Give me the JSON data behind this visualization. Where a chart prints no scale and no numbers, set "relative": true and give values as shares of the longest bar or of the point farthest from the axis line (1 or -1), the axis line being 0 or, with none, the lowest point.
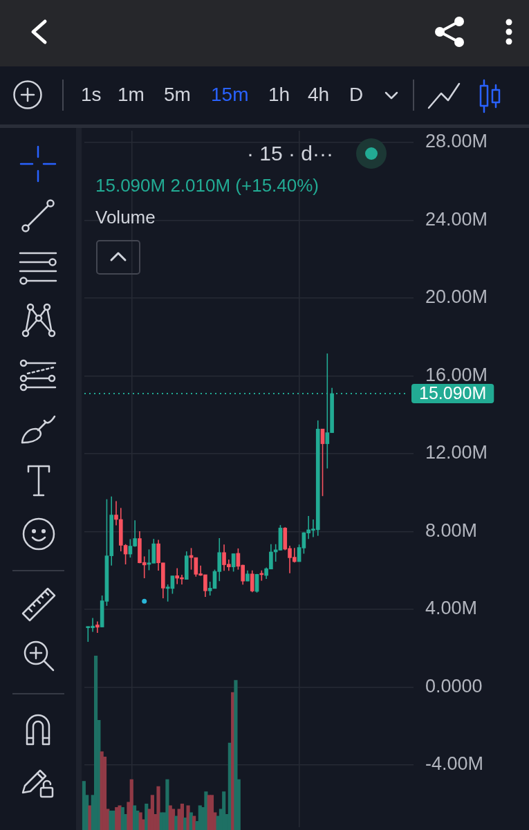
{
  "chart_data": [
    {
      "type": "candlestick",
      "title": "· 15 · d···",
      "subtitle": "15.090M 2.010M (+15.40%)",
      "categories": [
        null,
        null,
        null,
        null,
        null,
        null,
        null,
        null,
        null,
        null,
        null,
        null,
        null,
        null,
        null,
        null,
        null,
        null,
        null,
        null,
        null,
        null,
        null,
        null,
        null,
        null,
        null,
        null,
        null,
        null,
        null,
        null,
        null,
        null,
        null,
        null,
        null,
        null,
        null,
        null,
        null,
        null,
        null,
        null,
        null,
        null,
        null,
        null,
        null,
        null,
        null,
        null,
        null
      ],
      "series": [
        {
          "ohlc": [
            [
              3.05,
              3.1,
              2.33,
              3.1
            ],
            [
              3.05,
              3.55,
              2.84,
              3.14
            ],
            [
              3.2,
              3.38,
              2.79,
              3.08
            ],
            [
              3.09,
              4.71,
              3.08,
              4.44
            ],
            [
              4.41,
              9.66,
              4.18,
              6.75
            ],
            [
              6.75,
              9.8,
              6.25,
              8.85
            ],
            [
              8.85,
              9.56,
              8.32,
              8.62
            ],
            [
              8.62,
              9.21,
              6.98,
              7.29
            ],
            [
              7.29,
              7.35,
              6.31,
              6.84
            ],
            [
              6.84,
              7.61,
              6.66,
              7.25
            ],
            [
              7.25,
              8.58,
              7.22,
              7.64
            ],
            [
              7.64,
              8.02,
              6.37,
              6.39
            ],
            [
              6.41,
              6.72,
              5.6,
              6.28
            ],
            [
              6.31,
              7.08,
              6.01,
              6.39
            ],
            [
              6.37,
              7.62,
              6.37,
              7.37
            ],
            [
              7.37,
              7.57,
              5.99,
              6.39
            ],
            [
              6.39,
              6.39,
              4.57,
              5.09
            ],
            [
              5.07,
              5.28,
              4.4,
              5.15
            ],
            [
              5.07,
              5.72,
              4.8,
              5.72
            ],
            [
              5.73,
              6.11,
              5.3,
              5.6
            ],
            [
              5.62,
              5.78,
              5.28,
              5.56
            ],
            [
              5.54,
              6.98,
              5.54,
              6.75
            ],
            [
              6.77,
              7.15,
              6.04,
              6.66
            ],
            [
              6.66,
              6.66,
              5.68,
              5.8
            ],
            [
              5.83,
              6.25,
              5.72,
              5.75
            ],
            [
              5.78,
              5.78,
              4.64,
              4.95
            ],
            [
              4.95,
              5.42,
              4.71,
              5.09
            ],
            [
              5.07,
              6.04,
              5.07,
              5.95
            ],
            [
              5.94,
              7.66,
              5.45,
              6.92
            ],
            [
              6.92,
              7.33,
              5.98,
              6.29
            ],
            [
              6.32,
              6.56,
              5.98,
              6.18
            ],
            [
              6.18,
              6.86,
              5.94,
              6.86
            ],
            [
              6.88,
              7.13,
              6.04,
              6.21
            ],
            [
              6.27,
              6.29,
              5.27,
              5.45
            ],
            [
              5.45,
              6.0,
              5.45,
              5.82
            ],
            [
              5.82,
              6.0,
              4.88,
              4.94
            ],
            [
              4.92,
              5.82,
              4.86,
              5.8
            ],
            [
              5.82,
              6.0,
              5.47,
              5.78
            ],
            [
              5.74,
              6.15,
              5.56,
              6.09
            ],
            [
              6.07,
              7.35,
              6.07,
              6.95
            ],
            [
              6.95,
              7.35,
              6.45,
              7.06
            ],
            [
              7.04,
              8.33,
              7.04,
              8.18
            ],
            [
              8.18,
              8.22,
              7.04,
              7.09
            ],
            [
              7.13,
              7.27,
              5.86,
              6.65
            ],
            [
              6.68,
              7.15,
              6.41,
              6.45
            ],
            [
              6.45,
              7.33,
              6.45,
              7.18
            ],
            [
              7.15,
              7.96,
              6.86,
              7.94
            ],
            [
              7.92,
              8.8,
              7.62,
              8.09
            ],
            [
              8.06,
              8.62,
              7.71,
              8.11
            ],
            [
              8.09,
              13.71,
              7.78,
              13.27
            ],
            [
              13.27,
              13.27,
              9.82,
              12.51
            ],
            [
              12.51,
              17.15,
              11.24,
              13.08
            ],
            [
              13.08,
              15.38,
              13.08,
              15.09
            ]
          ],
          "colors": [
            "#22ab94",
            "#22ab94",
            "#f7525f",
            "#22ab94",
            "#22ab94",
            "#22ab94",
            "#f7525f",
            "#f7525f",
            "#f7525f",
            "#22ab94",
            "#22ab94",
            "#f7525f",
            "#f7525f",
            "#22ab94",
            "#22ab94",
            "#f7525f",
            "#f7525f",
            "#22ab94",
            "#22ab94",
            "#f7525f",
            "#f7525f",
            "#22ab94",
            "#f7525f",
            "#f7525f",
            "#f7525f",
            "#f7525f",
            "#22ab94",
            "#22ab94",
            "#22ab94",
            "#f7525f",
            "#f7525f",
            "#22ab94",
            "#f7525f",
            "#f7525f",
            "#22ab94",
            "#f7525f",
            "#22ab94",
            "#f7525f",
            "#22ab94",
            "#22ab94",
            "#22ab94",
            "#22ab94",
            "#f7525f",
            "#f7525f",
            "#f7525f",
            "#22ab94",
            "#22ab94",
            "#22ab94",
            "#22ab94",
            "#22ab94",
            "#f7525f",
            "#22ab94",
            "#22ab94"
          ]
        },
        {
          "type": "scatter",
          "color": "#29b6d8",
          "values": [
            null,
            null,
            null,
            null,
            null,
            null,
            null,
            null,
            null,
            null,
            null,
            null,
            4.42,
            null,
            null,
            null,
            null,
            null,
            null,
            null,
            null,
            null,
            null,
            null,
            null,
            null,
            null,
            null,
            null,
            null,
            null,
            null,
            null,
            null,
            null,
            null,
            null,
            null,
            null,
            null,
            null,
            null,
            null,
            null,
            null,
            null,
            null,
            null,
            null,
            null,
            null,
            null,
            null
          ]
        }
      ],
      "marker": "circle",
      "ylim": [
        -7.2,
        28.6
      ],
      "yticks": [
        {
          "value": -4,
          "label": "-4.00M"
        },
        {
          "value": 0,
          "label": "0.0000"
        },
        {
          "value": 4,
          "label": "4.00M"
        },
        {
          "value": 8,
          "label": "8.00M"
        },
        {
          "value": 12,
          "label": "12.00M"
        },
        {
          "value": 16,
          "label": "16.00M"
        },
        {
          "value": 20,
          "label": "20.00M"
        },
        {
          "value": 24,
          "label": "24.00M"
        },
        {
          "value": 28,
          "label": "28.00M"
        }
      ],
      "ref_lines": [
        {
          "axis": "y",
          "value": 15.09,
          "label": "15.090M",
          "color": "#22ab94",
          "line_style": "dotted"
        }
      ],
      "grid": true,
      "tick_labels": "y",
      "annotations": [
        "1s",
        "1m",
        "5m",
        "15m",
        "1h",
        "4h",
        "D"
      ]
    },
    {
      "type": "bar",
      "title": "Volume",
      "relative": true,
      "tick_labels": false,
      "categories": [
        null,
        null,
        null,
        null,
        null,
        null,
        null,
        null,
        null,
        null,
        null,
        null,
        null,
        null,
        null,
        null,
        null,
        null,
        null,
        null,
        null,
        null,
        null,
        null,
        null,
        null,
        null,
        null,
        null,
        null,
        null,
        null,
        null,
        null,
        null,
        null,
        null,
        null,
        null,
        null,
        null,
        null,
        null,
        null,
        null,
        null,
        null,
        null,
        null,
        null,
        null,
        null,
        null
      ],
      "values": [
        0.28,
        0.2,
        0.14,
        0.2,
        1,
        0.63,
        0.45,
        0.42,
        0.12,
        0.11,
        0.11,
        0.13,
        0.14,
        0.13,
        0.09,
        0.16,
        0.29,
        0.14,
        0.11,
        0.1,
        0.06,
        0.15,
        0.12,
        0.2,
        0.09,
        0.25,
        0.1,
        0.1,
        0.29,
        0.14,
        0.12,
        0.08,
        0.12,
        0.15,
        0.07,
        0.14,
        0.1,
        0.08,
        0.05,
        0.14,
        0.13,
        0.22,
        0.2,
        0.2,
        0.1,
        0.08,
        0.12,
        0.22,
        0.09,
        0.5,
        0.79,
        0.86,
        0.29
      ],
      "colors": [
        "#1e7064",
        "#1e7064",
        "#913a46",
        "#1e7064",
        "#1e7064",
        "#1e7064",
        "#913a46",
        "#913a46",
        "#913a46",
        "#1e7064",
        "#1e7064",
        "#913a46",
        "#913a46",
        "#1e7064",
        "#1e7064",
        "#913a46",
        "#913a46",
        "#1e7064",
        "#1e7064",
        "#913a46",
        "#913a46",
        "#1e7064",
        "#913a46",
        "#913a46",
        "#913a46",
        "#913a46",
        "#1e7064",
        "#1e7064",
        "#1e7064",
        "#913a46",
        "#913a46",
        "#1e7064",
        "#913a46",
        "#913a46",
        "#1e7064",
        "#913a46",
        "#1e7064",
        "#913a46",
        "#1e7064",
        "#1e7064",
        "#1e7064",
        "#1e7064",
        "#913a46",
        "#913a46",
        "#913a46",
        "#1e7064",
        "#1e7064",
        "#1e7064",
        "#1e7064",
        "#1e7064",
        "#913a46",
        "#1e7064",
        "#1e7064"
      ]
    }
  ]
}
